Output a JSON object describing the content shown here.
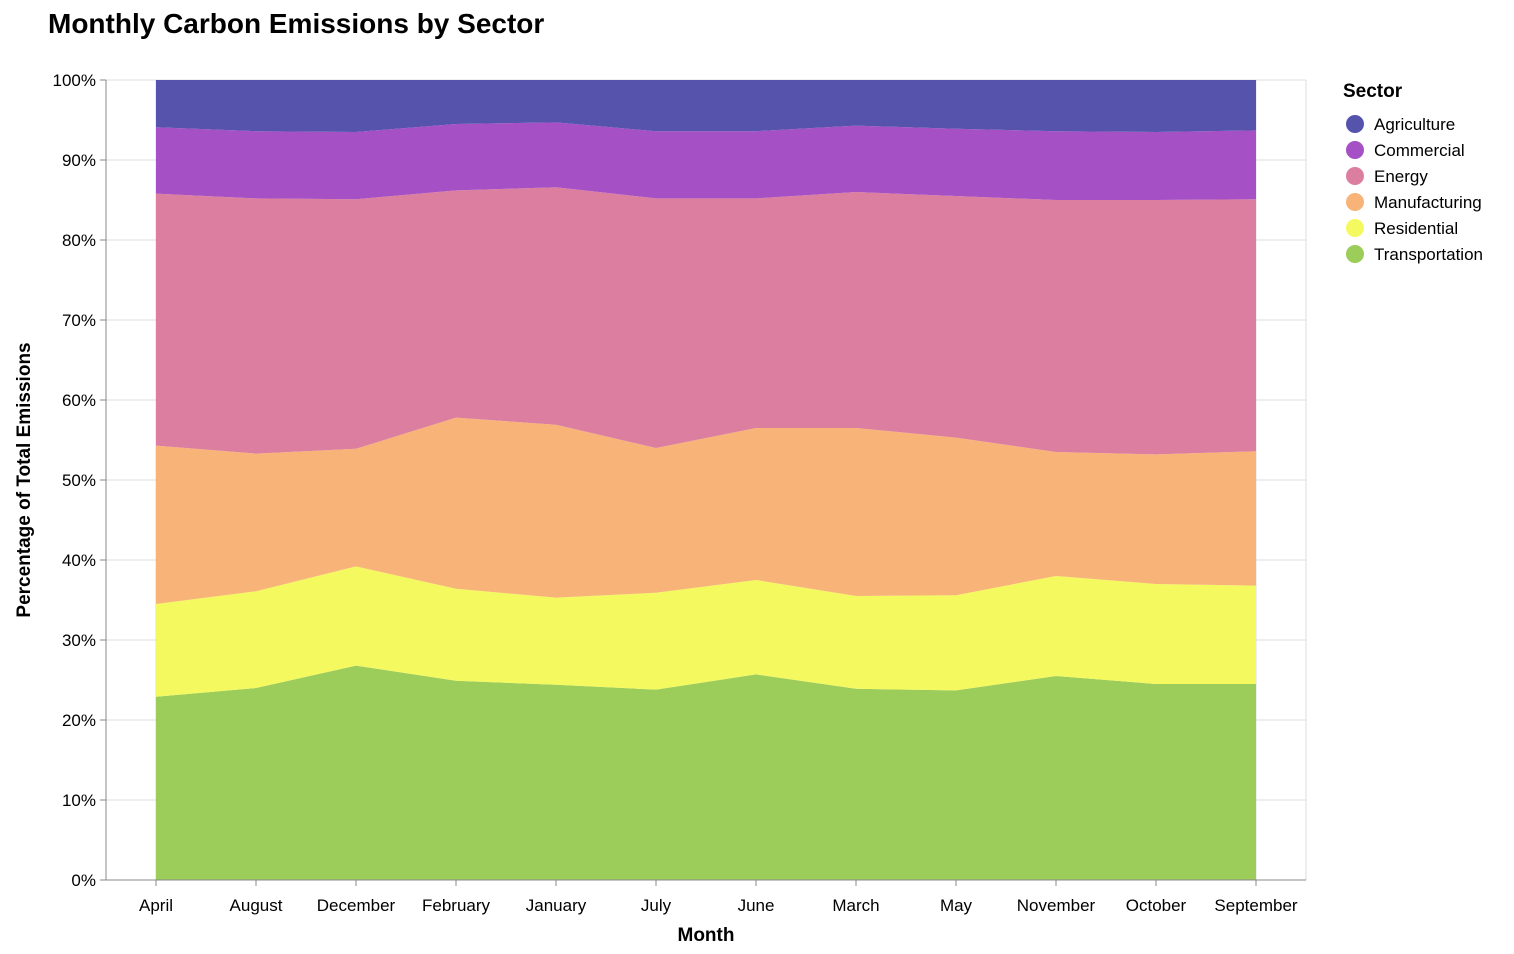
{
  "chart_data": {
    "type": "area",
    "stacked": "normalize",
    "title": "Monthly Carbon Emissions by Sector",
    "xlabel": "Month",
    "ylabel": "Percentage of Total Emissions",
    "ylim": [
      0,
      100
    ],
    "y_ticks": [
      "0%",
      "10%",
      "20%",
      "30%",
      "40%",
      "50%",
      "60%",
      "70%",
      "80%",
      "90%",
      "100%"
    ],
    "categories": [
      "April",
      "August",
      "December",
      "February",
      "January",
      "July",
      "June",
      "March",
      "May",
      "November",
      "October",
      "September"
    ],
    "grid": true,
    "legend_title": "Sector",
    "legend_position": "top-right",
    "series": [
      {
        "name": "Transportation",
        "color": "#9ccd5a",
        "values": [
          22.9,
          24.0,
          26.8,
          24.9,
          24.4,
          23.8,
          25.7,
          23.9,
          23.7,
          25.5,
          24.5,
          24.5
        ]
      },
      {
        "name": "Residential",
        "color": "#f4f960",
        "values": [
          11.6,
          12.1,
          12.4,
          11.5,
          10.9,
          12.1,
          11.8,
          11.6,
          11.9,
          12.5,
          12.5,
          12.3
        ]
      },
      {
        "name": "Manufacturing",
        "color": "#f8b478",
        "values": [
          19.8,
          17.2,
          14.7,
          21.4,
          21.6,
          18.1,
          19.0,
          21.0,
          19.7,
          15.5,
          16.2,
          16.8
        ]
      },
      {
        "name": "Energy",
        "color": "#dc7ea0",
        "values": [
          31.5,
          31.9,
          31.2,
          28.4,
          29.7,
          31.2,
          28.7,
          29.5,
          30.2,
          31.5,
          31.8,
          31.5
        ]
      },
      {
        "name": "Commercial",
        "color": "#a550c4",
        "values": [
          8.3,
          8.4,
          8.4,
          8.3,
          8.1,
          8.4,
          8.4,
          8.3,
          8.4,
          8.6,
          8.5,
          8.6
        ]
      },
      {
        "name": "Agriculture",
        "color": "#5553ac",
        "values": [
          5.9,
          6.4,
          6.5,
          5.5,
          5.3,
          6.4,
          6.4,
          5.7,
          6.1,
          6.4,
          6.5,
          6.3
        ]
      }
    ],
    "legend_order": [
      "Agriculture",
      "Commercial",
      "Energy",
      "Manufacturing",
      "Residential",
      "Transportation"
    ]
  }
}
